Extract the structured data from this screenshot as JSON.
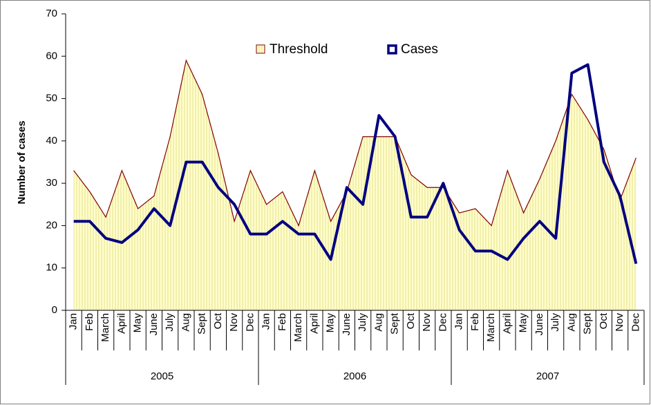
{
  "chart_data": {
    "type": "line",
    "y_label": "Number of cases",
    "categories": [
      "Jan",
      "Feb",
      "March",
      "April",
      "May",
      "June",
      "July",
      "Aug",
      "Sept",
      "Oct",
      "Nov",
      "Dec",
      "Jan",
      "Feb",
      "March",
      "April",
      "May",
      "June",
      "July",
      "Aug",
      "Sept",
      "Oct",
      "Nov",
      "Dec",
      "Jan",
      "Feb",
      "March",
      "April",
      "May",
      "June",
      "July",
      "Aug",
      "Sept",
      "Oct",
      "Nov",
      "Dec"
    ],
    "category_groups": [
      "2005",
      "2006",
      "2007"
    ],
    "ylim": [
      0,
      70
    ],
    "yticks": [
      0,
      10,
      20,
      30,
      40,
      50,
      60,
      70
    ],
    "legend": "top",
    "series": [
      {
        "name": "Threshold",
        "type": "area",
        "color": "#ffffcc",
        "edge_color": "#800000",
        "values": [
          33,
          28,
          22,
          33,
          24,
          27,
          41,
          59,
          51,
          37,
          21,
          33,
          25,
          28,
          20,
          33,
          21,
          28,
          41,
          41,
          41,
          32,
          29,
          29,
          23,
          24,
          20,
          33,
          23,
          31,
          40,
          51,
          45,
          38,
          26,
          36
        ]
      },
      {
        "name": "Cases",
        "type": "line",
        "color": "#000080",
        "values": [
          21,
          21,
          17,
          16,
          19,
          24,
          20,
          35,
          35,
          29,
          25,
          18,
          18,
          21,
          18,
          18,
          12,
          29,
          25,
          46,
          41,
          22,
          22,
          30,
          19,
          14,
          14,
          12,
          17,
          21,
          17,
          56,
          58,
          35,
          27,
          11
        ]
      }
    ]
  }
}
